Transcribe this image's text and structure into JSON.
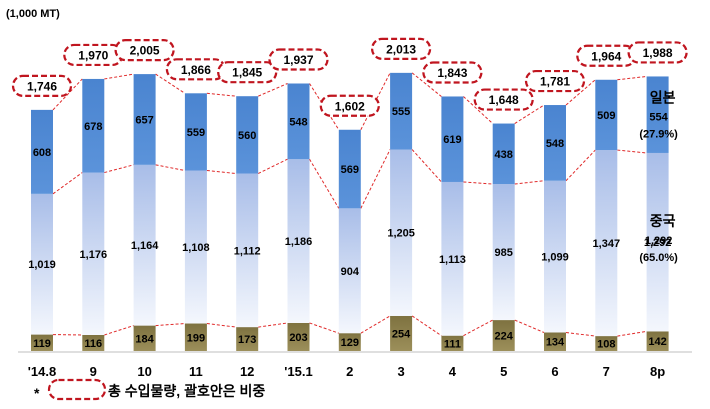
{
  "chart_data": {
    "type": "bar",
    "unit_label": "(1,000 MT)",
    "categories": [
      "'14.8",
      "9",
      "10",
      "11",
      "12",
      "'15.1",
      "2",
      "3",
      "4",
      "5",
      "6",
      "7",
      "8p"
    ],
    "totals": [
      "1,746",
      "1,970",
      "2,005",
      "1,866",
      "1,845",
      "1,937",
      "1,602",
      "2,013",
      "1,843",
      "1,648",
      "1,781",
      "1,964",
      "1,988"
    ],
    "series": [
      {
        "key": "other",
        "values": [
          119,
          116,
          184,
          199,
          173,
          203,
          129,
          254,
          111,
          224,
          134,
          108,
          142
        ],
        "color": "#8c7f4c"
      },
      {
        "key": "china",
        "name": "중국",
        "values": [
          1019,
          1176,
          1164,
          1108,
          1112,
          1186,
          904,
          1205,
          1113,
          985,
          1099,
          1347,
          1292
        ],
        "color": "#a9bfe6",
        "share": "(65.0%)"
      },
      {
        "key": "japan",
        "name": "일본",
        "values": [
          608,
          678,
          657,
          559,
          560,
          548,
          569,
          555,
          619,
          438,
          548,
          509,
          554
        ],
        "color": "#4f88d1",
        "share": "(27.9%)"
      }
    ],
    "footnote": {
      "prefix": "*",
      "text": "총 수입물량, 괄호안은 비중"
    },
    "ylim": [
      0,
      2100
    ],
    "grid": false,
    "highlight_color": "#c0151f"
  }
}
